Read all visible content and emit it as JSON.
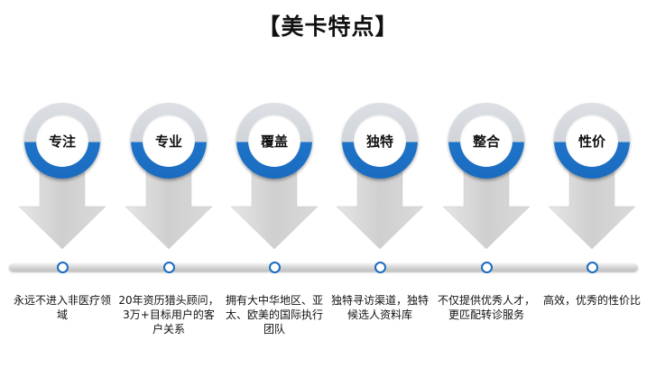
{
  "title": "【美卡特点】",
  "colors": {
    "accent": "#1a6cc0",
    "ring_top": "#d1d5da",
    "arrow": "#d6d6d6"
  },
  "features": [
    {
      "label": "专注",
      "desc": "永远不进入非医疗领域"
    },
    {
      "label": "专业",
      "desc": "20年资历猎头顾问，3万+目标用户的客户关系"
    },
    {
      "label": "覆盖",
      "desc": "拥有大中华地区、亚太、欧美的国际执行团队"
    },
    {
      "label": "独特",
      "desc": "独特寻访渠道，独特候选人资料库"
    },
    {
      "label": "整合",
      "desc": "不仅提供优秀人才，更匹配转诊服务"
    },
    {
      "label": "性价",
      "desc": "高效，优秀的性价比"
    }
  ]
}
